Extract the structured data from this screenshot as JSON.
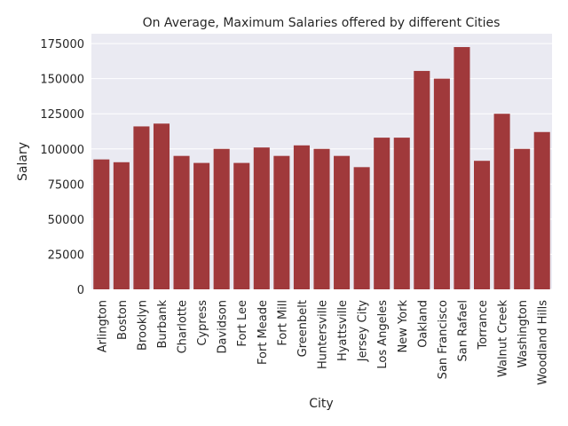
{
  "chart_data": {
    "type": "bar",
    "title": "On Average, Maximum Salaries offered by different Cities",
    "xlabel": "City",
    "ylabel": "Salary",
    "ylim": [
      0,
      182000
    ],
    "yticks": [
      0,
      25000,
      50000,
      75000,
      100000,
      125000,
      150000,
      175000
    ],
    "grid": true,
    "bar_color": "#a0393b",
    "background_color": "#eaeaf2",
    "categories": [
      "Arlington",
      "Boston",
      "Brooklyn",
      "Burbank",
      "Charlotte",
      "Cypress",
      "Davidson",
      "Fort Lee",
      "Fort Meade",
      "Fort Mill",
      "Greenbelt",
      "Huntersville",
      "Hyattsville",
      "Jersey City",
      "Los Angeles",
      "New York",
      "Oakland",
      "San Francisco",
      "San Rafael",
      "Torrance",
      "Walnut Creek",
      "Washington",
      "Woodland Hills"
    ],
    "values": [
      92500,
      90500,
      116000,
      118000,
      95000,
      90000,
      100000,
      90000,
      101000,
      95000,
      102500,
      100000,
      95000,
      87000,
      108000,
      108000,
      155500,
      150000,
      172500,
      91500,
      125000,
      100000,
      112000
    ]
  }
}
